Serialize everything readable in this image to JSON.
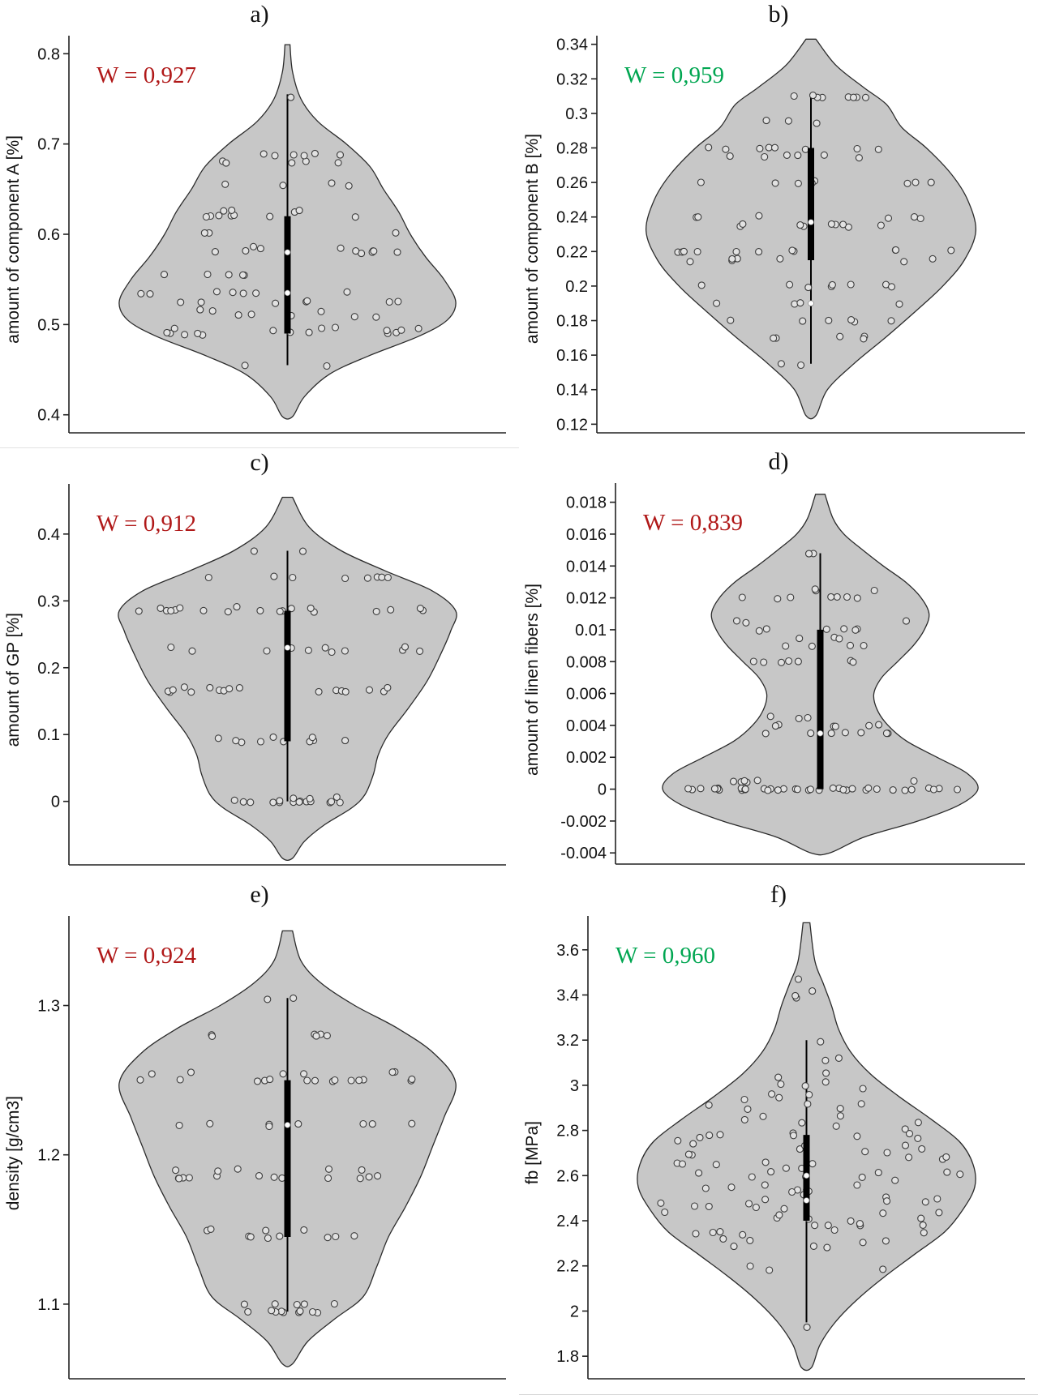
{
  "style": {
    "violin_fill": "#c7c7c7",
    "violin_stroke": "#2b2b2b",
    "point_fill": "#e2e2e2",
    "point_stroke": "#3c3c3c",
    "axis_color": "#222222",
    "w_red": "#b01818",
    "w_green": "#00a651"
  },
  "chart_data": [
    {
      "type": "violin",
      "panel_label": "a)",
      "w_label": "W = 0,927",
      "w_color": "#b01818",
      "ylabel": "amount of component A [%]",
      "ylim": [
        0.38,
        0.82
      ],
      "yticks": [
        0.4,
        0.5,
        0.6,
        0.7,
        0.8
      ],
      "ytick_labels": [
        "0.4",
        "0.5",
        "0.6",
        "0.7",
        "0.8"
      ],
      "violin": [
        [
          0.398,
          0.03
        ],
        [
          0.42,
          0.1
        ],
        [
          0.445,
          0.25
        ],
        [
          0.465,
          0.48
        ],
        [
          0.487,
          0.78
        ],
        [
          0.505,
          0.95
        ],
        [
          0.525,
          1.0
        ],
        [
          0.55,
          0.93
        ],
        [
          0.575,
          0.82
        ],
        [
          0.6,
          0.73
        ],
        [
          0.625,
          0.66
        ],
        [
          0.65,
          0.57
        ],
        [
          0.675,
          0.49
        ],
        [
          0.7,
          0.35
        ],
        [
          0.725,
          0.18
        ],
        [
          0.75,
          0.08
        ],
        [
          0.78,
          0.03
        ],
        [
          0.81,
          0.015
        ]
      ],
      "whisker": [
        0.455,
        0.755
      ],
      "box": [
        0.49,
        0.62
      ],
      "dots": [
        0.535,
        0.58
      ],
      "points": [
        {
          "y": 0.455,
          "n": 2
        },
        {
          "y": 0.49,
          "n": 9
        },
        {
          "y": 0.495,
          "n": 7
        },
        {
          "y": 0.51,
          "n": 6
        },
        {
          "y": 0.515,
          "n": 3
        },
        {
          "y": 0.525,
          "n": 7
        },
        {
          "y": 0.535,
          "n": 7
        },
        {
          "y": 0.555,
          "n": 5
        },
        {
          "y": 0.58,
          "n": 8
        },
        {
          "y": 0.585,
          "n": 3
        },
        {
          "y": 0.6,
          "n": 3
        },
        {
          "y": 0.62,
          "n": 7
        },
        {
          "y": 0.625,
          "n": 4
        },
        {
          "y": 0.655,
          "n": 4
        },
        {
          "y": 0.68,
          "n": 5
        },
        {
          "y": 0.688,
          "n": 6
        },
        {
          "y": 0.75,
          "n": 1
        }
      ],
      "yjit": 0.004,
      "seed": 1
    },
    {
      "type": "violin",
      "panel_label": "b)",
      "w_label": "W = 0,959",
      "w_color": "#00a651",
      "ylabel": "amount of component B [%]",
      "ylim": [
        0.115,
        0.345
      ],
      "yticks": [
        0.12,
        0.14,
        0.16,
        0.18,
        0.2,
        0.22,
        0.24,
        0.26,
        0.28,
        0.3,
        0.32,
        0.34
      ],
      "ytick_labels": [
        "0.12",
        "0.14",
        "0.16",
        "0.18",
        "0.2",
        "0.22",
        "0.24",
        "0.26",
        "0.28",
        "0.3",
        "0.32",
        "0.34"
      ],
      "violin": [
        [
          0.125,
          0.03
        ],
        [
          0.14,
          0.1
        ],
        [
          0.155,
          0.26
        ],
        [
          0.17,
          0.45
        ],
        [
          0.185,
          0.63
        ],
        [
          0.2,
          0.8
        ],
        [
          0.215,
          0.93
        ],
        [
          0.232,
          1.0
        ],
        [
          0.25,
          0.95
        ],
        [
          0.265,
          0.85
        ],
        [
          0.28,
          0.7
        ],
        [
          0.292,
          0.55
        ],
        [
          0.305,
          0.46
        ],
        [
          0.315,
          0.32
        ],
        [
          0.328,
          0.15
        ],
        [
          0.343,
          0.03
        ]
      ],
      "whisker": [
        0.155,
        0.31
      ],
      "box": [
        0.215,
        0.28
      ],
      "dots": [
        0.237,
        0.19
      ],
      "points": [
        {
          "y": 0.155,
          "n": 2
        },
        {
          "y": 0.17,
          "n": 5
        },
        {
          "y": 0.18,
          "n": 6
        },
        {
          "y": 0.19,
          "n": 4
        },
        {
          "y": 0.2,
          "n": 8
        },
        {
          "y": 0.215,
          "n": 7
        },
        {
          "y": 0.22,
          "n": 11
        },
        {
          "y": 0.235,
          "n": 9
        },
        {
          "y": 0.24,
          "n": 6
        },
        {
          "y": 0.26,
          "n": 8
        },
        {
          "y": 0.275,
          "n": 6
        },
        {
          "y": 0.28,
          "n": 8
        },
        {
          "y": 0.295,
          "n": 3
        },
        {
          "y": 0.31,
          "n": 8
        }
      ],
      "yjit": 0.004,
      "seed": 2
    },
    {
      "type": "violin",
      "panel_label": "c)",
      "w_label": "W = 0,912",
      "w_color": "#b01818",
      "ylabel": "amount of GP [%]",
      "ylim": [
        -0.095,
        0.475
      ],
      "yticks": [
        0,
        0.1,
        0.2,
        0.3,
        0.4
      ],
      "ytick_labels": [
        "0",
        "0.1",
        "0.2",
        "0.3",
        "0.4"
      ],
      "violin": [
        [
          -0.085,
          0.03
        ],
        [
          -0.06,
          0.1
        ],
        [
          -0.035,
          0.22
        ],
        [
          -0.01,
          0.38
        ],
        [
          0.01,
          0.46
        ],
        [
          0.04,
          0.51
        ],
        [
          0.07,
          0.54
        ],
        [
          0.1,
          0.6
        ],
        [
          0.14,
          0.72
        ],
        [
          0.18,
          0.83
        ],
        [
          0.22,
          0.91
        ],
        [
          0.255,
          0.97
        ],
        [
          0.285,
          1.0
        ],
        [
          0.315,
          0.86
        ],
        [
          0.345,
          0.58
        ],
        [
          0.375,
          0.32
        ],
        [
          0.41,
          0.13
        ],
        [
          0.455,
          0.03
        ]
      ],
      "whisker": [
        0.0,
        0.375
      ],
      "box": [
        0.09,
        0.285
      ],
      "dots": [
        0.23
      ],
      "points": [
        {
          "y": 0.0,
          "n": 15
        },
        {
          "y": 0.005,
          "n": 3
        },
        {
          "y": 0.09,
          "n": 7
        },
        {
          "y": 0.095,
          "n": 3
        },
        {
          "y": 0.165,
          "n": 12
        },
        {
          "y": 0.17,
          "n": 5
        },
        {
          "y": 0.225,
          "n": 7
        },
        {
          "y": 0.23,
          "n": 4
        },
        {
          "y": 0.285,
          "n": 13
        },
        {
          "y": 0.29,
          "n": 6
        },
        {
          "y": 0.335,
          "n": 8
        },
        {
          "y": 0.375,
          "n": 2
        }
      ],
      "yjit": 0.003,
      "seed": 3
    },
    {
      "type": "violin",
      "panel_label": "d)",
      "w_label": "W = 0,839",
      "w_color": "#b01818",
      "ylabel": "amount of linen fibers [%]",
      "ylim": [
        -0.0047,
        0.0192
      ],
      "yticks": [
        -0.004,
        -0.002,
        0,
        0.002,
        0.004,
        0.006,
        0.008,
        0.01,
        0.012,
        0.014,
        0.016,
        0.018
      ],
      "ytick_labels": [
        "-0.004",
        "-0.002",
        "0",
        "0.002",
        "0.004",
        "0.006",
        "0.008",
        "0.01",
        "0.012",
        "0.014",
        "0.016",
        "0.018"
      ],
      "violin": [
        [
          -0.004,
          0.06
        ],
        [
          -0.003,
          0.28
        ],
        [
          -0.002,
          0.62
        ],
        [
          -0.001,
          0.88
        ],
        [
          0.0,
          1.0
        ],
        [
          0.001,
          0.93
        ],
        [
          0.002,
          0.74
        ],
        [
          0.003,
          0.55
        ],
        [
          0.004,
          0.43
        ],
        [
          0.005,
          0.36
        ],
        [
          0.006,
          0.34
        ],
        [
          0.007,
          0.39
        ],
        [
          0.008,
          0.49
        ],
        [
          0.009,
          0.59
        ],
        [
          0.01,
          0.66
        ],
        [
          0.011,
          0.69
        ],
        [
          0.012,
          0.64
        ],
        [
          0.013,
          0.54
        ],
        [
          0.014,
          0.4
        ],
        [
          0.015,
          0.27
        ],
        [
          0.016,
          0.15
        ],
        [
          0.017,
          0.08
        ],
        [
          0.0185,
          0.03
        ]
      ],
      "whisker": [
        0.0,
        0.0148
      ],
      "box": [
        0.0,
        0.01
      ],
      "dots": [
        0.0035
      ],
      "points": [
        {
          "y": 0.0,
          "n": 36
        },
        {
          "y": 0.0005,
          "n": 6
        },
        {
          "y": 0.0035,
          "n": 7
        },
        {
          "y": 0.004,
          "n": 6
        },
        {
          "y": 0.0045,
          "n": 3
        },
        {
          "y": 0.008,
          "n": 7
        },
        {
          "y": 0.009,
          "n": 4
        },
        {
          "y": 0.0095,
          "n": 3
        },
        {
          "y": 0.01,
          "n": 6
        },
        {
          "y": 0.0105,
          "n": 3
        },
        {
          "y": 0.012,
          "n": 7
        },
        {
          "y": 0.0125,
          "n": 3
        },
        {
          "y": 0.0148,
          "n": 2
        }
      ],
      "yjit": 0.003,
      "seed": 4
    },
    {
      "type": "violin",
      "panel_label": "e)",
      "w_label": "W = 0,924",
      "w_color": "#b01818",
      "ylabel": "density [g/cm3]",
      "ylim": [
        1.05,
        1.36
      ],
      "yticks": [
        1.1,
        1.2,
        1.3
      ],
      "ytick_labels": [
        "1.1",
        "1.2",
        "1.3"
      ],
      "violin": [
        [
          1.06,
          0.03
        ],
        [
          1.075,
          0.12
        ],
        [
          1.09,
          0.28
        ],
        [
          1.105,
          0.45
        ],
        [
          1.125,
          0.53
        ],
        [
          1.145,
          0.6
        ],
        [
          1.165,
          0.7
        ],
        [
          1.185,
          0.79
        ],
        [
          1.205,
          0.86
        ],
        [
          1.225,
          0.93
        ],
        [
          1.248,
          1.0
        ],
        [
          1.268,
          0.87
        ],
        [
          1.285,
          0.65
        ],
        [
          1.3,
          0.4
        ],
        [
          1.315,
          0.2
        ],
        [
          1.33,
          0.08
        ],
        [
          1.35,
          0.03
        ]
      ],
      "whisker": [
        1.095,
        1.305
      ],
      "box": [
        1.145,
        1.25
      ],
      "dots": [
        1.22
      ],
      "points": [
        {
          "y": 1.095,
          "n": 9
        },
        {
          "y": 1.1,
          "n": 5
        },
        {
          "y": 1.145,
          "n": 7
        },
        {
          "y": 1.15,
          "n": 4
        },
        {
          "y": 1.185,
          "n": 12
        },
        {
          "y": 1.19,
          "n": 5
        },
        {
          "y": 1.22,
          "n": 8
        },
        {
          "y": 1.25,
          "n": 14
        },
        {
          "y": 1.255,
          "n": 6
        },
        {
          "y": 1.28,
          "n": 6
        },
        {
          "y": 1.305,
          "n": 2
        }
      ],
      "yjit": 0.003,
      "seed": 5
    },
    {
      "type": "violin",
      "panel_label": "f)",
      "w_label": "W = 0,960",
      "w_color": "#00a651",
      "ylabel": "fb [MPa]",
      "ylim": [
        1.7,
        3.75
      ],
      "yticks": [
        1.8,
        2,
        2.2,
        2.4,
        2.6,
        2.8,
        3,
        3.2,
        3.4,
        3.6
      ],
      "ytick_labels": [
        "1.8",
        "2",
        "2.2",
        "2.4",
        "2.6",
        "2.8",
        "3",
        "3.2",
        "3.4",
        "3.6"
      ],
      "violin": [
        [
          1.75,
          0.03
        ],
        [
          1.85,
          0.08
        ],
        [
          1.95,
          0.17
        ],
        [
          2.05,
          0.3
        ],
        [
          2.15,
          0.46
        ],
        [
          2.25,
          0.64
        ],
        [
          2.35,
          0.82
        ],
        [
          2.45,
          0.93
        ],
        [
          2.55,
          1.0
        ],
        [
          2.65,
          0.99
        ],
        [
          2.75,
          0.91
        ],
        [
          2.85,
          0.74
        ],
        [
          2.95,
          0.55
        ],
        [
          3.05,
          0.38
        ],
        [
          3.15,
          0.26
        ],
        [
          3.25,
          0.19
        ],
        [
          3.35,
          0.15
        ],
        [
          3.45,
          0.1
        ],
        [
          3.55,
          0.05
        ],
        [
          3.72,
          0.02
        ]
      ],
      "whisker": [
        1.95,
        3.2
      ],
      "box": [
        2.4,
        2.78
      ],
      "dots": [
        2.6,
        2.49
      ],
      "points": [
        {
          "y": 1.95,
          "n": 1
        },
        {
          "y": 2.2,
          "n": 3
        },
        {
          "y": 2.3,
          "n": 7
        },
        {
          "y": 2.35,
          "n": 6
        },
        {
          "y": 2.4,
          "n": 9
        },
        {
          "y": 2.45,
          "n": 8
        },
        {
          "y": 2.5,
          "n": 8
        },
        {
          "y": 2.55,
          "n": 8
        },
        {
          "y": 2.6,
          "n": 9
        },
        {
          "y": 2.65,
          "n": 8
        },
        {
          "y": 2.7,
          "n": 8
        },
        {
          "y": 2.75,
          "n": 7
        },
        {
          "y": 2.8,
          "n": 7
        },
        {
          "y": 2.85,
          "n": 5
        },
        {
          "y": 2.9,
          "n": 5
        },
        {
          "y": 2.95,
          "n": 4
        },
        {
          "y": 3.0,
          "n": 4
        },
        {
          "y": 3.05,
          "n": 2
        },
        {
          "y": 3.1,
          "n": 2
        },
        {
          "y": 3.2,
          "n": 1
        },
        {
          "y": 3.4,
          "n": 3
        },
        {
          "y": 3.45,
          "n": 1
        }
      ],
      "yjit": 0.012,
      "seed": 6
    }
  ]
}
